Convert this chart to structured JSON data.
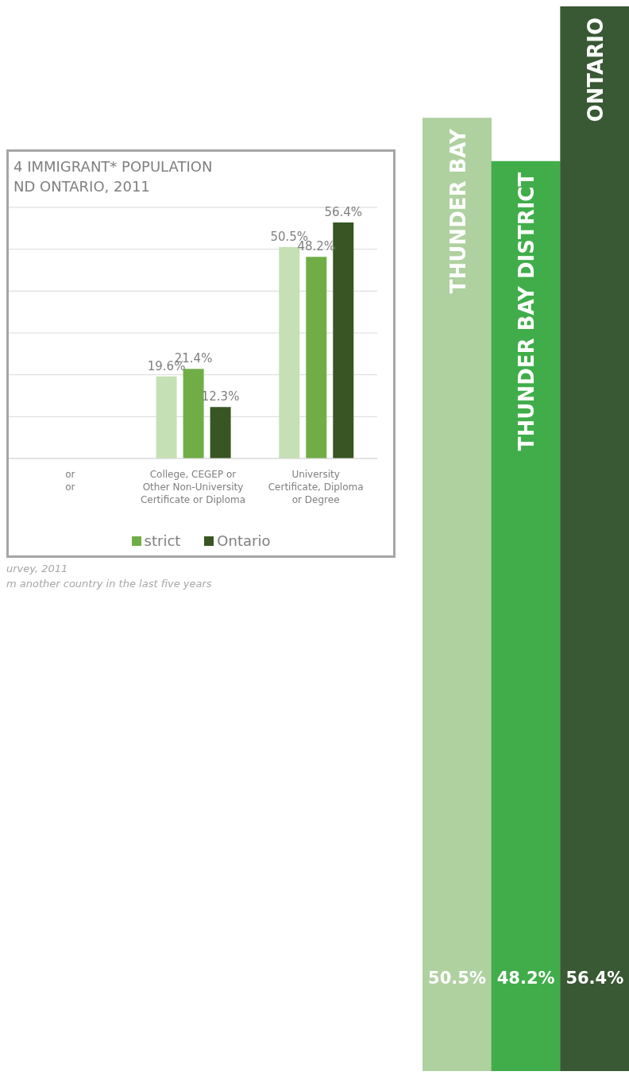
{
  "chart_data": [
    {
      "type": "bar",
      "title": "4 IMMIGRANT* POPULATION\nND ONTARIO, 2011",
      "categories": [
        "or\nor",
        "College, CEGEP or Other Non-University Certificate or Diploma",
        "University Certificate, Diploma or Degree"
      ],
      "series": [
        {
          "color": "#c5e0b4",
          "values": [
            null,
            19.6,
            50.5
          ],
          "value_labels": [
            null,
            "19.6%",
            "50.5%"
          ]
        },
        {
          "name": "strict",
          "color": "#70ad47",
          "values": [
            null,
            21.4,
            48.2
          ],
          "value_labels": [
            null,
            "21.4%",
            "48.2%"
          ]
        },
        {
          "name": "Ontario",
          "color": "#375623",
          "values": [
            null,
            12.3,
            56.4
          ],
          "value_labels": [
            null,
            "12.3%",
            "56.4%"
          ]
        }
      ],
      "tick_labels": "x",
      "grid": "y",
      "legend": "bottom",
      "annotations": [
        "urvey, 2011",
        "m another country in the last five years"
      ]
    },
    {
      "type": "bar",
      "categories": [
        "THUNDER BAY",
        "THUNDER BAY DISTRICT",
        "ONTARIO"
      ],
      "values": [
        50.5,
        48.2,
        56.4
      ],
      "value_labels": [
        "50.5%",
        "48.2%",
        "56.4%"
      ],
      "colors": [
        "#afd1a0",
        "#40ad4a",
        "#395834"
      ],
      "tick_labels": false
    }
  ]
}
